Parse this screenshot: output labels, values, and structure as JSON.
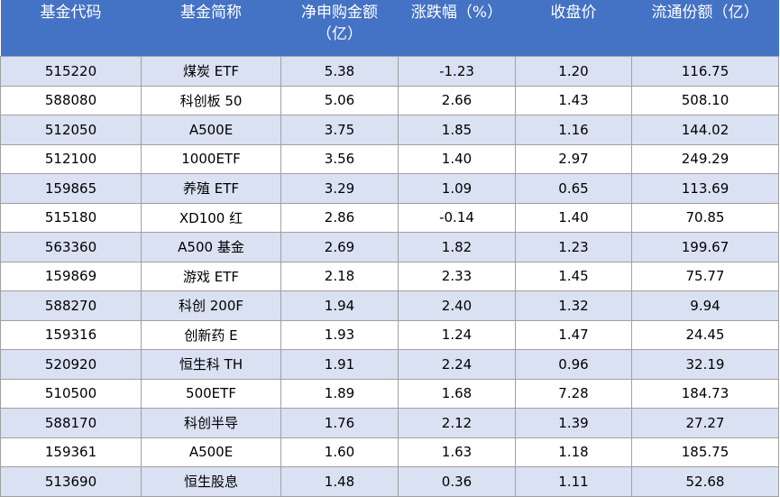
{
  "headers": [
    "基金代码",
    "基金简称",
    "净申购金额（亿）",
    "涨跌幅（%）",
    "收盘价",
    "流通份额（亿）"
  ],
  "rows": [
    [
      "515220",
      "煤炭 ETF",
      "5.38",
      "-1.23",
      "1.20",
      "116.75"
    ],
    [
      "588080",
      "科创板 50",
      "5.06",
      "2.66",
      "1.43",
      "508.10"
    ],
    [
      "512050",
      "A500E",
      "3.75",
      "1.85",
      "1.16",
      "144.02"
    ],
    [
      "512100",
      "1000ETF",
      "3.56",
      "1.40",
      "2.97",
      "249.29"
    ],
    [
      "159865",
      "养殖 ETF",
      "3.29",
      "1.09",
      "0.65",
      "113.69"
    ],
    [
      "515180",
      "XD100 红",
      "2.86",
      "-0.14",
      "1.40",
      "70.85"
    ],
    [
      "563360",
      "A500 基金",
      "2.69",
      "1.82",
      "1.23",
      "199.67"
    ],
    [
      "159869",
      "游戏 ETF",
      "2.18",
      "2.33",
      "1.45",
      "75.77"
    ],
    [
      "588270",
      "科创 200F",
      "1.94",
      "2.40",
      "1.32",
      "9.94"
    ],
    [
      "159316",
      "创新药 E",
      "1.93",
      "1.24",
      "1.47",
      "24.45"
    ],
    [
      "520920",
      "恒生科 TH",
      "1.91",
      "2.24",
      "0.96",
      "32.19"
    ],
    [
      "510500",
      "500ETF",
      "1.89",
      "1.68",
      "7.28",
      "184.73"
    ],
    [
      "588170",
      "科创半导",
      "1.76",
      "2.12",
      "1.39",
      "27.27"
    ],
    [
      "159361",
      "A500E",
      "1.60",
      "1.63",
      "1.18",
      "185.75"
    ],
    [
      "513690",
      "恒生股息",
      "1.48",
      "0.36",
      "1.11",
      "52.68"
    ]
  ]
}
